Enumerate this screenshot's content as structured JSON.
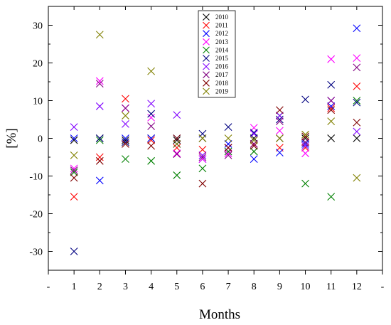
{
  "chart_data": {
    "type": "scatter",
    "title": "",
    "xlabel": "Months",
    "ylabel": "[%]",
    "x_ticks": [
      "1",
      "2",
      "3",
      "4",
      "5",
      "6",
      "7",
      "8",
      "9",
      "10",
      "11",
      "12"
    ],
    "x_extra_ticks": [
      "-",
      "-"
    ],
    "xlim": [
      0,
      13
    ],
    "ylim": [
      -35,
      35
    ],
    "y_ticks": [
      -30,
      -20,
      -10,
      0,
      10,
      20,
      30
    ],
    "marker": "x",
    "grid": false,
    "legend_position": "top-center",
    "series": [
      {
        "name": "2010",
        "color": "#000000",
        "values": [
          -0.5,
          0,
          -0.5,
          0,
          -0.5,
          0,
          -2.5,
          0,
          0,
          0,
          0,
          0
        ]
      },
      {
        "name": "2011",
        "color": "#ff0000",
        "values": [
          -15.5,
          -5,
          10.5,
          -0.5,
          -2.5,
          -3,
          -2.5,
          -1.5,
          -2.5,
          -2.5,
          8,
          13.8
        ]
      },
      {
        "name": "2012",
        "color": "#0000ff",
        "values": [
          0,
          -11.2,
          0,
          0,
          -1.5,
          -5.5,
          -1.5,
          -5.5,
          -3.8,
          -1.5,
          8.5,
          29.2
        ]
      },
      {
        "name": "2013",
        "color": "#ff00ff",
        "values": [
          -8,
          15.2,
          8,
          5.5,
          -4,
          -5.5,
          -4,
          2.8,
          2,
          -4,
          21,
          21.3
        ]
      },
      {
        "name": "2014",
        "color": "#008000",
        "values": [
          -9,
          -0.5,
          -5.5,
          -6,
          -9.8,
          -8,
          -3.5,
          -3.5,
          6,
          -12,
          -15.5,
          10
        ]
      },
      {
        "name": "2015",
        "color": "#000080",
        "values": [
          -30,
          0,
          -1,
          6.5,
          0,
          1.2,
          3,
          1.5,
          5,
          10.3,
          14.2,
          9.5
        ]
      },
      {
        "name": "2016",
        "color": "#8000ff",
        "values": [
          3,
          8.5,
          3.8,
          9.2,
          6.2,
          -4.5,
          -2.5,
          1.2,
          6,
          -2,
          10,
          1.8
        ]
      },
      {
        "name": "2017",
        "color": "#800080",
        "values": [
          -8.5,
          14.5,
          8,
          3.2,
          -4.2,
          -5,
          -4.5,
          -1.5,
          4.5,
          -1,
          10,
          18.8
        ]
      },
      {
        "name": "2018",
        "color": "#800000",
        "values": [
          -10.5,
          -6,
          -1.5,
          -2,
          0,
          -12,
          -2.5,
          -2,
          7.5,
          0.5,
          7.5,
          4.2
        ]
      },
      {
        "name": "2019",
        "color": "#808000",
        "values": [
          -4.5,
          27.5,
          6,
          17.8,
          -1.5,
          0,
          0,
          -0.5,
          0,
          1,
          4.5,
          -10.5
        ]
      }
    ]
  }
}
